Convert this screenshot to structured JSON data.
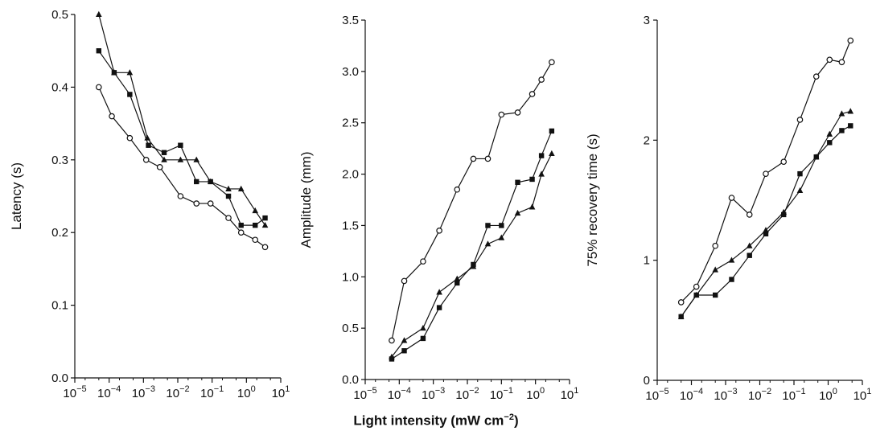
{
  "chart_data": [
    {
      "type": "line",
      "ylabel": "Latency (s)",
      "xscale": "log",
      "xlim": [
        1e-05,
        10
      ],
      "ylim": [
        0,
        0.5
      ],
      "yticks": [
        0.0,
        0.1,
        0.2,
        0.3,
        0.4,
        0.5
      ],
      "ytick_labels": [
        "0.0",
        "0.1",
        "0.2",
        "0.3",
        "0.4",
        "0.5"
      ],
      "grid": false,
      "series": [
        {
          "marker": "circle-open",
          "x": [
            5e-05,
            0.00012,
            0.0004,
            0.0012,
            0.003,
            0.012,
            0.035,
            0.09,
            0.3,
            0.7,
            1.8,
            3.5
          ],
          "y": [
            0.4,
            0.36,
            0.33,
            0.3,
            0.29,
            0.25,
            0.24,
            0.24,
            0.22,
            0.2,
            0.19,
            0.18
          ]
        },
        {
          "marker": "square-filled",
          "x": [
            5e-05,
            0.00014,
            0.0004,
            0.0014,
            0.004,
            0.012,
            0.035,
            0.09,
            0.3,
            0.7,
            1.8,
            3.5
          ],
          "y": [
            0.45,
            0.42,
            0.39,
            0.32,
            0.31,
            0.32,
            0.27,
            0.27,
            0.25,
            0.21,
            0.21,
            0.22
          ]
        },
        {
          "marker": "triangle-filled",
          "x": [
            5e-05,
            0.00014,
            0.0004,
            0.0013,
            0.004,
            0.012,
            0.035,
            0.09,
            0.3,
            0.7,
            1.8,
            3.5
          ],
          "y": [
            0.5,
            0.42,
            0.42,
            0.33,
            0.3,
            0.3,
            0.3,
            0.27,
            0.26,
            0.26,
            0.23,
            0.21
          ]
        }
      ]
    },
    {
      "type": "line",
      "ylabel": "Amplitude (mm)",
      "xscale": "log",
      "xlim": [
        1e-05,
        10
      ],
      "ylim": [
        0,
        3.5
      ],
      "yticks": [
        0.0,
        0.5,
        1.0,
        1.5,
        2.0,
        2.5,
        3.0,
        3.5
      ],
      "ytick_labels": [
        "0.0",
        "0.5",
        "1.0",
        "1.5",
        "2.0",
        "2.5",
        "3.0",
        "3.5"
      ],
      "grid": false,
      "series": [
        {
          "marker": "circle-open",
          "x": [
            6e-05,
            0.00014,
            0.0005,
            0.0015,
            0.005,
            0.015,
            0.04,
            0.1,
            0.3,
            0.8,
            1.5,
            3.0
          ],
          "y": [
            0.38,
            0.96,
            1.15,
            1.45,
            1.85,
            2.15,
            2.15,
            2.58,
            2.6,
            2.78,
            2.92,
            3.09
          ]
        },
        {
          "marker": "square-filled",
          "x": [
            6e-05,
            0.00014,
            0.0005,
            0.0015,
            0.005,
            0.015,
            0.04,
            0.1,
            0.3,
            0.8,
            1.5,
            3.0
          ],
          "y": [
            0.2,
            0.28,
            0.4,
            0.7,
            0.94,
            1.12,
            1.5,
            1.5,
            1.92,
            1.95,
            2.18,
            2.42
          ]
        },
        {
          "marker": "triangle-filled",
          "x": [
            6e-05,
            0.00014,
            0.0005,
            0.0015,
            0.005,
            0.015,
            0.04,
            0.1,
            0.3,
            0.8,
            1.5,
            3.0
          ],
          "y": [
            0.22,
            0.38,
            0.5,
            0.85,
            0.98,
            1.1,
            1.32,
            1.38,
            1.62,
            1.68,
            2.0,
            2.2
          ]
        }
      ]
    },
    {
      "type": "line",
      "ylabel": "75% recovery time (s)",
      "xscale": "log",
      "xlim": [
        1e-05,
        10
      ],
      "ylim": [
        0,
        3
      ],
      "yticks": [
        0,
        1,
        2,
        3
      ],
      "ytick_labels": [
        "0",
        "1",
        "2",
        "3"
      ],
      "grid": false,
      "series": [
        {
          "marker": "circle-open",
          "x": [
            5e-05,
            0.00014,
            0.0005,
            0.0015,
            0.005,
            0.015,
            0.05,
            0.15,
            0.45,
            1.1,
            2.5,
            4.5
          ],
          "y": [
            0.65,
            0.78,
            1.12,
            1.52,
            1.38,
            1.72,
            1.82,
            2.17,
            2.53,
            2.67,
            2.65,
            2.83
          ]
        },
        {
          "marker": "square-filled",
          "x": [
            5e-05,
            0.00014,
            0.0005,
            0.0015,
            0.005,
            0.015,
            0.05,
            0.15,
            0.45,
            1.1,
            2.5,
            4.5
          ],
          "y": [
            0.53,
            0.71,
            0.71,
            0.84,
            1.04,
            1.22,
            1.38,
            1.72,
            1.86,
            1.98,
            2.08,
            2.12
          ]
        },
        {
          "marker": "triangle-filled",
          "x": [
            5e-05,
            0.00014,
            0.0005,
            0.0015,
            0.005,
            0.015,
            0.05,
            0.15,
            0.45,
            1.1,
            2.5,
            4.5
          ],
          "y": [
            0.53,
            0.71,
            0.92,
            1.0,
            1.12,
            1.25,
            1.4,
            1.58,
            1.86,
            2.05,
            2.22,
            2.24
          ]
        }
      ]
    }
  ],
  "x_axis": {
    "label_main": "Light intensity (mW cm",
    "label_exp": "−2",
    "label_close": ")",
    "tick_bases": [
      "10",
      "10",
      "10",
      "10",
      "10",
      "10",
      "10"
    ],
    "tick_exps": [
      "−5",
      "−4",
      "−3",
      "−2",
      "−1",
      "0",
      "1"
    ]
  }
}
